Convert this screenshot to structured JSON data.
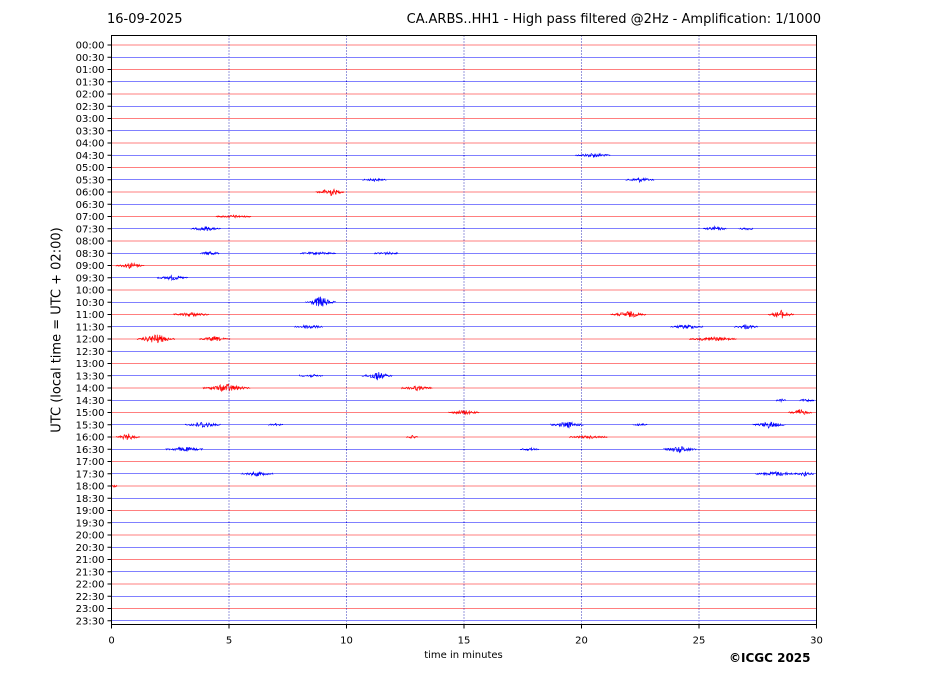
{
  "header": {
    "date": "16-09-2025",
    "title": "CA.ARBS..HH1 - High pass filtered @2Hz - Amplification: 1/1000"
  },
  "footer": {
    "copyright": "©ICGC 2025"
  },
  "chart_data": {
    "type": "line",
    "xlabel": "time in minutes",
    "ylabel": "UTC (local time = UTC + 02:00)",
    "xlim": [
      0,
      30
    ],
    "x_ticks": [
      0,
      5,
      10,
      15,
      20,
      25,
      30
    ],
    "x_gridlines": [
      5,
      10,
      15,
      20,
      25
    ],
    "grid": "vertical dotted",
    "row_colors": [
      "#ff0000",
      "#0000ff"
    ],
    "rows": [
      "00:00",
      "00:30",
      "01:00",
      "01:30",
      "02:00",
      "02:30",
      "03:00",
      "03:30",
      "04:00",
      "04:30",
      "05:00",
      "05:30",
      "06:00",
      "06:30",
      "07:00",
      "07:30",
      "08:00",
      "08:30",
      "09:00",
      "09:30",
      "10:00",
      "10:30",
      "11:00",
      "11:30",
      "12:00",
      "12:30",
      "13:00",
      "13:30",
      "14:00",
      "14:30",
      "15:00",
      "15:30",
      "16:00",
      "16:30",
      "17:00",
      "17:30",
      "18:00",
      "18:30",
      "19:00",
      "19:30",
      "20:00",
      "20:30",
      "21:00",
      "21:30",
      "22:00",
      "22:30",
      "23:00",
      "23:30"
    ],
    "events": [
      {
        "row": "04:30",
        "minute": 20.5,
        "amplitude": 2,
        "duration": 1.5
      },
      {
        "row": "05:30",
        "minute": 11.2,
        "amplitude": 1,
        "duration": 1.0
      },
      {
        "row": "05:30",
        "minute": 22.5,
        "amplitude": 2,
        "duration": 1.2
      },
      {
        "row": "06:00",
        "minute": 9.3,
        "amplitude": 4,
        "duration": 1.2
      },
      {
        "row": "07:00",
        "minute": 5.2,
        "amplitude": 1,
        "duration": 1.5
      },
      {
        "row": "07:30",
        "minute": 4.0,
        "amplitude": 2,
        "duration": 1.3
      },
      {
        "row": "07:30",
        "minute": 25.7,
        "amplitude": 2,
        "duration": 1.0
      },
      {
        "row": "07:30",
        "minute": 27.0,
        "amplitude": 1,
        "duration": 0.6
      },
      {
        "row": "08:30",
        "minute": 4.2,
        "amplitude": 2,
        "duration": 0.8
      },
      {
        "row": "08:30",
        "minute": 8.8,
        "amplitude": 1,
        "duration": 1.5
      },
      {
        "row": "08:30",
        "minute": 11.7,
        "amplitude": 1,
        "duration": 1.0
      },
      {
        "row": "09:00",
        "minute": 0.8,
        "amplitude": 3,
        "duration": 1.2
      },
      {
        "row": "09:30",
        "minute": 2.6,
        "amplitude": 2,
        "duration": 1.3
      },
      {
        "row": "10:30",
        "minute": 8.9,
        "amplitude": 6,
        "duration": 1.3
      },
      {
        "row": "11:00",
        "minute": 3.4,
        "amplitude": 2,
        "duration": 1.5
      },
      {
        "row": "11:00",
        "minute": 22.0,
        "amplitude": 3,
        "duration": 1.5
      },
      {
        "row": "11:00",
        "minute": 28.5,
        "amplitude": 4,
        "duration": 1.1
      },
      {
        "row": "11:30",
        "minute": 8.4,
        "amplitude": 2,
        "duration": 1.2
      },
      {
        "row": "11:30",
        "minute": 24.5,
        "amplitude": 2,
        "duration": 1.4
      },
      {
        "row": "11:30",
        "minute": 27.0,
        "amplitude": 2,
        "duration": 1.0
      },
      {
        "row": "12:00",
        "minute": 1.9,
        "amplitude": 5,
        "duration": 1.6
      },
      {
        "row": "12:00",
        "minute": 4.4,
        "amplitude": 2,
        "duration": 1.3
      },
      {
        "row": "12:00",
        "minute": 25.6,
        "amplitude": 2,
        "duration": 2.0
      },
      {
        "row": "13:30",
        "minute": 11.3,
        "amplitude": 4,
        "duration": 1.3
      },
      {
        "row": "13:30",
        "minute": 8.5,
        "amplitude": 1,
        "duration": 1.0
      },
      {
        "row": "14:00",
        "minute": 4.9,
        "amplitude": 4,
        "duration": 2.0
      },
      {
        "row": "14:00",
        "minute": 13.0,
        "amplitude": 2,
        "duration": 1.3
      },
      {
        "row": "14:30",
        "minute": 28.5,
        "amplitude": 1,
        "duration": 0.4
      },
      {
        "row": "14:30",
        "minute": 29.6,
        "amplitude": 1,
        "duration": 0.6
      },
      {
        "row": "15:00",
        "minute": 15.0,
        "amplitude": 2,
        "duration": 1.3
      },
      {
        "row": "15:00",
        "minute": 29.3,
        "amplitude": 3,
        "duration": 1.0
      },
      {
        "row": "15:30",
        "minute": 3.9,
        "amplitude": 3,
        "duration": 1.5
      },
      {
        "row": "15:30",
        "minute": 7.0,
        "amplitude": 1,
        "duration": 0.6
      },
      {
        "row": "15:30",
        "minute": 19.4,
        "amplitude": 3,
        "duration": 1.4
      },
      {
        "row": "15:30",
        "minute": 22.5,
        "amplitude": 1,
        "duration": 0.6
      },
      {
        "row": "15:30",
        "minute": 28.0,
        "amplitude": 3,
        "duration": 1.4
      },
      {
        "row": "16:00",
        "minute": 0.7,
        "amplitude": 3,
        "duration": 1.0
      },
      {
        "row": "16:00",
        "minute": 12.8,
        "amplitude": 1,
        "duration": 0.5
      },
      {
        "row": "16:00",
        "minute": 20.3,
        "amplitude": 1,
        "duration": 1.6
      },
      {
        "row": "16:30",
        "minute": 3.1,
        "amplitude": 2,
        "duration": 1.6
      },
      {
        "row": "16:30",
        "minute": 17.8,
        "amplitude": 1,
        "duration": 0.8
      },
      {
        "row": "16:30",
        "minute": 24.2,
        "amplitude": 3,
        "duration": 1.4
      },
      {
        "row": "17:30",
        "minute": 6.2,
        "amplitude": 2,
        "duration": 1.4
      },
      {
        "row": "17:30",
        "minute": 28.3,
        "amplitude": 2,
        "duration": 1.8
      },
      {
        "row": "17:30",
        "minute": 29.5,
        "amplitude": 2,
        "duration": 0.8
      },
      {
        "row": "18:00",
        "minute": 0.1,
        "amplitude": 1,
        "duration": 0.3
      }
    ]
  }
}
